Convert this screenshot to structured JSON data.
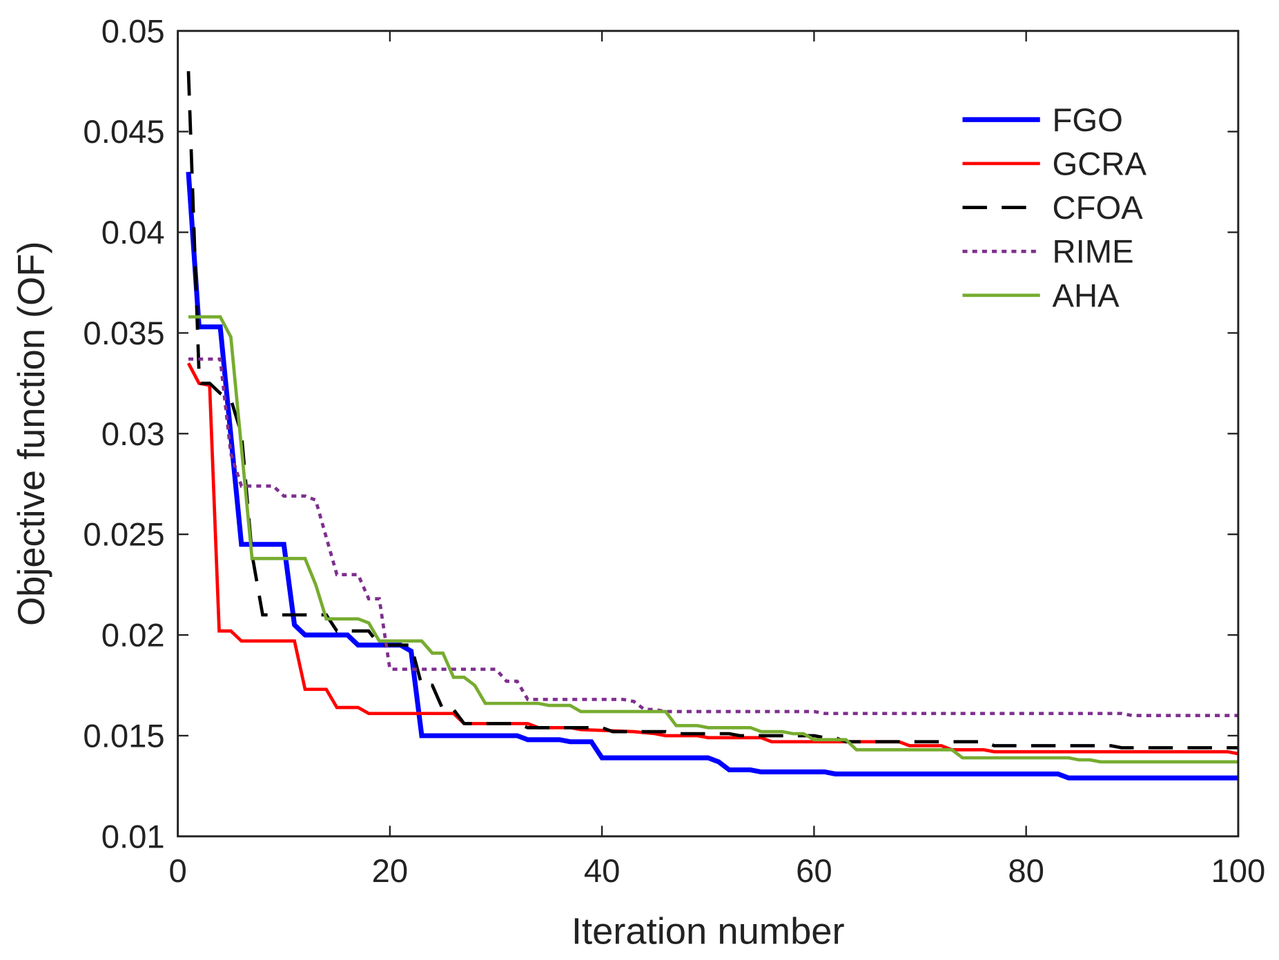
{
  "chart_data": {
    "type": "line",
    "title": "",
    "xlabel": "Iteration number",
    "ylabel": "Objective function (OF)",
    "xlim": [
      0,
      100
    ],
    "ylim": [
      0.01,
      0.05
    ],
    "xticks": [
      0,
      20,
      40,
      60,
      80,
      100
    ],
    "xtick_labels": [
      "0",
      "20",
      "40",
      "60",
      "80",
      "100"
    ],
    "yticks": [
      0.01,
      0.015,
      0.02,
      0.025,
      0.03,
      0.035,
      0.04,
      0.045,
      0.05
    ],
    "ytick_labels": [
      "0.01",
      "0.015",
      "0.02",
      "0.025",
      "0.03",
      "0.035",
      "0.04",
      "0.045",
      "0.05"
    ],
    "grid": false,
    "legend_position": "top-right",
    "series": [
      {
        "name": "FGO",
        "color": "#0000ff",
        "style": "solid",
        "width": 6,
        "points": [
          [
            1,
            0.043
          ],
          [
            2,
            0.0353
          ],
          [
            4,
            0.0353
          ],
          [
            6,
            0.0245
          ],
          [
            10,
            0.0245
          ],
          [
            11,
            0.0205
          ],
          [
            12,
            0.02
          ],
          [
            16,
            0.02
          ],
          [
            17,
            0.0195
          ],
          [
            21,
            0.0195
          ],
          [
            22,
            0.0192
          ],
          [
            23,
            0.015
          ],
          [
            32,
            0.015
          ],
          [
            33,
            0.0148
          ],
          [
            36,
            0.0148
          ],
          [
            37,
            0.0147
          ],
          [
            39,
            0.0147
          ],
          [
            40,
            0.0139
          ],
          [
            50,
            0.0139
          ],
          [
            51,
            0.0137
          ],
          [
            52,
            0.0133
          ],
          [
            54,
            0.0133
          ],
          [
            55,
            0.0132
          ],
          [
            61,
            0.0132
          ],
          [
            62,
            0.0131
          ],
          [
            83,
            0.0131
          ],
          [
            84,
            0.0129
          ],
          [
            100,
            0.0129
          ]
        ]
      },
      {
        "name": "GCRA",
        "color": "#ff0000",
        "style": "solid",
        "width": 4,
        "points": [
          [
            1,
            0.0335
          ],
          [
            2,
            0.0325
          ],
          [
            3,
            0.0324
          ],
          [
            3.9,
            0.0202
          ],
          [
            5,
            0.0202
          ],
          [
            6,
            0.0197
          ],
          [
            11,
            0.0197
          ],
          [
            12,
            0.0173
          ],
          [
            14,
            0.0173
          ],
          [
            15,
            0.0164
          ],
          [
            17,
            0.0164
          ],
          [
            18,
            0.0161
          ],
          [
            26,
            0.0161
          ],
          [
            27,
            0.0156
          ],
          [
            33,
            0.0156
          ],
          [
            34,
            0.0154
          ],
          [
            37,
            0.0154
          ],
          [
            38,
            0.0153
          ],
          [
            43,
            0.0152
          ],
          [
            45,
            0.0151
          ],
          [
            46,
            0.015
          ],
          [
            49,
            0.015
          ],
          [
            50,
            0.0149
          ],
          [
            55,
            0.0149
          ],
          [
            56,
            0.0147
          ],
          [
            68,
            0.0147
          ],
          [
            69,
            0.0145
          ],
          [
            72,
            0.0145
          ],
          [
            73,
            0.0143
          ],
          [
            76,
            0.0143
          ],
          [
            77,
            0.0142
          ],
          [
            99,
            0.0142
          ],
          [
            100,
            0.0141
          ]
        ]
      },
      {
        "name": "CFOA",
        "color": "#000000",
        "style": "dashed",
        "width": 4,
        "points": [
          [
            1,
            0.048
          ],
          [
            2,
            0.033
          ],
          [
            2.2,
            0.0325
          ],
          [
            3,
            0.0325
          ],
          [
            4,
            0.032
          ],
          [
            5,
            0.0317
          ],
          [
            6,
            0.03
          ],
          [
            7,
            0.024
          ],
          [
            8,
            0.021
          ],
          [
            14,
            0.021
          ],
          [
            15,
            0.0202
          ],
          [
            18,
            0.0202
          ],
          [
            19,
            0.0195
          ],
          [
            22,
            0.0195
          ],
          [
            23,
            0.0175
          ],
          [
            24,
            0.0175
          ],
          [
            25,
            0.0163
          ],
          [
            26,
            0.0163
          ],
          [
            27,
            0.0156
          ],
          [
            32,
            0.0156
          ],
          [
            33,
            0.0154
          ],
          [
            40,
            0.0154
          ],
          [
            41,
            0.0152
          ],
          [
            46,
            0.0152
          ],
          [
            47,
            0.0151
          ],
          [
            52,
            0.0151
          ],
          [
            53,
            0.015
          ],
          [
            60,
            0.015
          ],
          [
            61,
            0.0149
          ],
          [
            62,
            0.0149
          ],
          [
            63,
            0.0147
          ],
          [
            76,
            0.0147
          ],
          [
            77,
            0.0145
          ],
          [
            88,
            0.0145
          ],
          [
            89,
            0.0144
          ],
          [
            100,
            0.0144
          ]
        ]
      },
      {
        "name": "RIME",
        "color": "#7e2f8e",
        "style": "dotted",
        "width": 4,
        "points": [
          [
            1,
            0.0337
          ],
          [
            4,
            0.0337
          ],
          [
            5,
            0.029
          ],
          [
            6,
            0.0274
          ],
          [
            9,
            0.0274
          ],
          [
            10,
            0.0269
          ],
          [
            12,
            0.0269
          ],
          [
            13,
            0.0267
          ],
          [
            15,
            0.023
          ],
          [
            17,
            0.023
          ],
          [
            18,
            0.0218
          ],
          [
            19,
            0.0218
          ],
          [
            20,
            0.0183
          ],
          [
            30,
            0.0183
          ],
          [
            31,
            0.0177
          ],
          [
            32,
            0.0177
          ],
          [
            33,
            0.0168
          ],
          [
            42,
            0.0168
          ],
          [
            43,
            0.0167
          ],
          [
            44,
            0.0163
          ],
          [
            45,
            0.0163
          ],
          [
            46,
            0.0162
          ],
          [
            60,
            0.0162
          ],
          [
            61,
            0.0161
          ],
          [
            89,
            0.0161
          ],
          [
            90,
            0.016
          ],
          [
            100,
            0.016
          ]
        ]
      },
      {
        "name": "AHA",
        "color": "#77ac30",
        "style": "solid",
        "width": 4,
        "points": [
          [
            1,
            0.0358
          ],
          [
            4,
            0.0358
          ],
          [
            5,
            0.0348
          ],
          [
            7,
            0.0238
          ],
          [
            12,
            0.0238
          ],
          [
            13,
            0.0225
          ],
          [
            14,
            0.0208
          ],
          [
            17,
            0.0208
          ],
          [
            18,
            0.0206
          ],
          [
            19,
            0.0197
          ],
          [
            23,
            0.0197
          ],
          [
            24,
            0.0191
          ],
          [
            25,
            0.0191
          ],
          [
            26,
            0.0179
          ],
          [
            27,
            0.0179
          ],
          [
            28,
            0.0175
          ],
          [
            29,
            0.0166
          ],
          [
            34,
            0.0166
          ],
          [
            35,
            0.0165
          ],
          [
            37,
            0.0165
          ],
          [
            38,
            0.0162
          ],
          [
            46,
            0.0162
          ],
          [
            47,
            0.0155
          ],
          [
            49,
            0.0155
          ],
          [
            50,
            0.0154
          ],
          [
            54,
            0.0154
          ],
          [
            55,
            0.0152
          ],
          [
            57,
            0.0152
          ],
          [
            58,
            0.0151
          ],
          [
            59,
            0.0151
          ],
          [
            60,
            0.0148
          ],
          [
            63,
            0.0148
          ],
          [
            64,
            0.0143
          ],
          [
            73,
            0.0143
          ],
          [
            74,
            0.0139
          ],
          [
            84,
            0.0139
          ],
          [
            85,
            0.0138
          ],
          [
            86,
            0.0138
          ],
          [
            87,
            0.0137
          ],
          [
            100,
            0.0137
          ]
        ]
      }
    ]
  }
}
